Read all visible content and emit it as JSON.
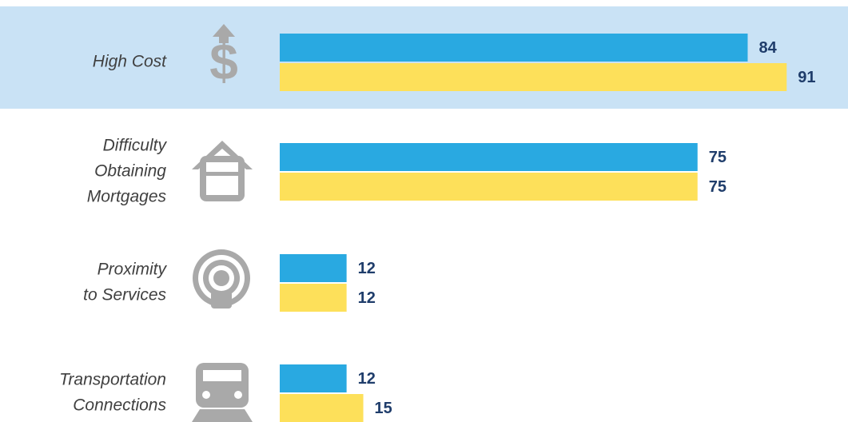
{
  "chart_data": {
    "type": "bar",
    "orientation": "horizontal",
    "categories": [
      [
        "High Cost"
      ],
      [
        "Difficulty",
        "Obtaining",
        "Mortgages"
      ],
      [
        "Proximity",
        "to Services"
      ],
      [
        "Transportation",
        "Connections"
      ]
    ],
    "series": [
      {
        "color": "#29a9e1",
        "values": [
          84,
          75,
          12,
          12
        ]
      },
      {
        "color": "#fde05a",
        "values": [
          91,
          75,
          12,
          15
        ]
      }
    ],
    "xlim": [
      0,
      100
    ]
  }
}
